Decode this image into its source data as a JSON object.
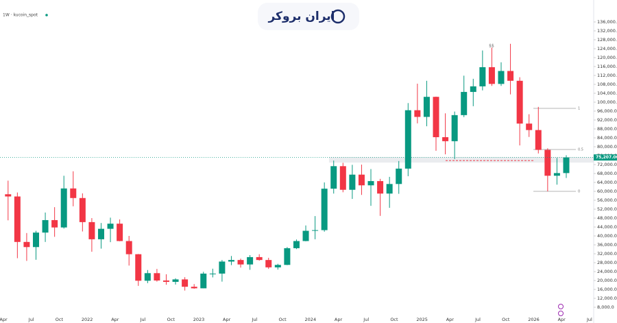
{
  "chart_data": {
    "type": "candlestick",
    "header": "1W · kucoin_spot",
    "watermark": "ایران بروکر",
    "up_color": "#089981",
    "down_color": "#f23645",
    "x": [
      "2021-04",
      "2021-05",
      "2021-06",
      "2021-07",
      "2021-08",
      "2021-09",
      "2021-10",
      "2021-11",
      "2021-12",
      "2022-01",
      "2022-02",
      "2022-03",
      "2022-04",
      "2022-05",
      "2022-06",
      "2022-07",
      "2022-08",
      "2022-09",
      "2022-10",
      "2022-11",
      "2022-12",
      "2023-01",
      "2023-02",
      "2023-03",
      "2023-04",
      "2023-05",
      "2023-06",
      "2023-07",
      "2023-08",
      "2023-09",
      "2023-10",
      "2023-11",
      "2023-12",
      "2024-01",
      "2024-02",
      "2024-03",
      "2024-04",
      "2024-05",
      "2024-06",
      "2024-07",
      "2024-08",
      "2024-09",
      "2024-10",
      "2024-11",
      "2024-12",
      "2025-01",
      "2025-02",
      "2025-03",
      "2025-04",
      "2025-05",
      "2025-06",
      "2025-07",
      "2025-08",
      "2025-09",
      "2025-10",
      "2025-11",
      "2025-12",
      "2026-01",
      "2026-02",
      "2026-03",
      "2026-04"
    ],
    "ohlc": [
      [
        58700,
        64800,
        47000,
        57700
      ],
      [
        57700,
        59500,
        30000,
        37300
      ],
      [
        37300,
        41300,
        28800,
        35000
      ],
      [
        35000,
        42300,
        29300,
        41500
      ],
      [
        41500,
        50500,
        37300,
        47100
      ],
      [
        47100,
        52900,
        39600,
        43800
      ],
      [
        43800,
        67000,
        43300,
        61300
      ],
      [
        61300,
        69000,
        53300,
        57000
      ],
      [
        57000,
        59100,
        42000,
        46200
      ],
      [
        46200,
        48000,
        32900,
        38500
      ],
      [
        38500,
        45800,
        34300,
        43200
      ],
      [
        43200,
        48200,
        37200,
        45500
      ],
      [
        45500,
        47400,
        37600,
        37700
      ],
      [
        37700,
        40000,
        26700,
        31800
      ],
      [
        31800,
        31900,
        17600,
        19900
      ],
      [
        19900,
        24700,
        18800,
        23300
      ],
      [
        23300,
        25200,
        19500,
        20000
      ],
      [
        20000,
        22800,
        18100,
        19400
      ],
      [
        19400,
        21000,
        18200,
        20500
      ],
      [
        20500,
        21500,
        15500,
        17200
      ],
      [
        17200,
        18400,
        16300,
        16500
      ],
      [
        16500,
        23900,
        16500,
        23100
      ],
      [
        23100,
        25300,
        21400,
        23100
      ],
      [
        23100,
        29200,
        19500,
        28500
      ],
      [
        28500,
        31000,
        26900,
        29200
      ],
      [
        29200,
        29800,
        25800,
        27200
      ],
      [
        27200,
        31400,
        24800,
        30500
      ],
      [
        30500,
        31800,
        28900,
        29200
      ],
      [
        29200,
        30200,
        25200,
        25900
      ],
      [
        25900,
        27500,
        24900,
        27000
      ],
      [
        27000,
        35000,
        26900,
        34500
      ],
      [
        34500,
        38400,
        34100,
        37700
      ],
      [
        37700,
        44700,
        37600,
        42300
      ],
      [
        42300,
        48900,
        38500,
        42600
      ],
      [
        42600,
        64000,
        41900,
        61200
      ],
      [
        61200,
        73800,
        59000,
        71300
      ],
      [
        71300,
        72800,
        59600,
        60700
      ],
      [
        60700,
        71900,
        56600,
        67500
      ],
      [
        67500,
        72000,
        58400,
        62700
      ],
      [
        62700,
        70000,
        53500,
        64600
      ],
      [
        64600,
        65600,
        49000,
        59000
      ],
      [
        59000,
        66500,
        52600,
        63300
      ],
      [
        63300,
        73600,
        58900,
        70200
      ],
      [
        70200,
        99600,
        66800,
        96400
      ],
      [
        96400,
        108300,
        90500,
        93400
      ],
      [
        93400,
        109600,
        89200,
        102400
      ],
      [
        102400,
        102500,
        78200,
        84300
      ],
      [
        84300,
        95000,
        76600,
        82500
      ],
      [
        82500,
        95800,
        74500,
        94200
      ],
      [
        94200,
        111900,
        93300,
        104600
      ],
      [
        104600,
        110500,
        98200,
        107100
      ],
      [
        107100,
        123200,
        105300,
        115700
      ],
      [
        115700,
        124500,
        107300,
        108200
      ],
      [
        108200,
        117900,
        107300,
        114000
      ],
      [
        114000,
        126200,
        103500,
        109600
      ],
      [
        109600,
        111200,
        80600,
        90400
      ],
      [
        90400,
        94600,
        84400,
        87500
      ],
      [
        87500,
        97900,
        77000,
        78600
      ],
      [
        78600,
        79300,
        60000,
        67000
      ],
      [
        67000,
        75000,
        63000,
        68200
      ],
      [
        68200,
        76200,
        66000,
        75200
      ]
    ],
    "ylim": [
      937,
      145846
    ],
    "yticks": [
      {
        "value": 8000,
        "label": "8,000.0"
      },
      {
        "value": 12000,
        "label": "12,000.0"
      },
      {
        "value": 16000,
        "label": "16,000.0"
      },
      {
        "value": 20000,
        "label": "20,000.0"
      },
      {
        "value": 24000,
        "label": "24,000.0"
      },
      {
        "value": 28000,
        "label": "28,000.0"
      },
      {
        "value": 32000,
        "label": "32,000.0"
      },
      {
        "value": 36000,
        "label": "36,000.0"
      },
      {
        "value": 40000,
        "label": "40,000.0"
      },
      {
        "value": 44000,
        "label": "44,000.0"
      },
      {
        "value": 48000,
        "label": "48,000.0"
      },
      {
        "value": 52000,
        "label": "52,000.0"
      },
      {
        "value": 56000,
        "label": "56,000.0"
      },
      {
        "value": 60000,
        "label": "60,000.0"
      },
      {
        "value": 64000,
        "label": "64,000.0"
      },
      {
        "value": 68000,
        "label": "68,000.0"
      },
      {
        "value": 72000,
        "label": "72,000.0"
      },
      {
        "value": 76000,
        "label": "76,000.0"
      },
      {
        "value": 80000,
        "label": "80,000.0"
      },
      {
        "value": 84000,
        "label": "84,000.0"
      },
      {
        "value": 88000,
        "label": "88,000.0"
      },
      {
        "value": 92000,
        "label": "92,000.0"
      },
      {
        "value": 96000,
        "label": "96,000.0"
      },
      {
        "value": 100000,
        "label": "100,000.0"
      },
      {
        "value": 104000,
        "label": "104,000.0"
      },
      {
        "value": 108000,
        "label": "108,000.0"
      },
      {
        "value": 112000,
        "label": "112,000.0"
      },
      {
        "value": 116000,
        "label": "116,000.0"
      },
      {
        "value": 120000,
        "label": "120,000.0"
      },
      {
        "value": 124000,
        "label": "124,000.0"
      },
      {
        "value": 128000,
        "label": "128,000.0"
      },
      {
        "value": 132000,
        "label": "132,000.0"
      },
      {
        "value": 136000,
        "label": "136,000.0"
      }
    ],
    "xticks": [
      {
        "value": "2021-04",
        "label": "Apr"
      },
      {
        "value": "2021-07",
        "label": "Jul"
      },
      {
        "value": "2021-10",
        "label": "Oct"
      },
      {
        "value": "2022-01",
        "label": "2022"
      },
      {
        "value": "2022-04",
        "label": "Apr"
      },
      {
        "value": "2022-07",
        "label": "Jul"
      },
      {
        "value": "2022-10",
        "label": "Oct"
      },
      {
        "value": "2023-01",
        "label": "2023"
      },
      {
        "value": "2023-04",
        "label": "Apr"
      },
      {
        "value": "2023-07",
        "label": "Jul"
      },
      {
        "value": "2023-10",
        "label": "Oct"
      },
      {
        "value": "2024-01",
        "label": "2024"
      },
      {
        "value": "2024-04",
        "label": "Apr"
      },
      {
        "value": "2024-07",
        "label": "Jul"
      },
      {
        "value": "2024-10",
        "label": "Oct"
      },
      {
        "value": "2025-01",
        "label": "2025"
      },
      {
        "value": "2025-04",
        "label": "Apr"
      },
      {
        "value": "2025-07",
        "label": "Jul"
      },
      {
        "value": "2025-10",
        "label": "Oct"
      },
      {
        "value": "2026-01",
        "label": "2026"
      },
      {
        "value": "2026-04",
        "label": "Apr"
      },
      {
        "value": "2026-07",
        "label": "Jul"
      }
    ],
    "price_line": {
      "value": 75207,
      "label": "75,207.00"
    },
    "zone": [
      72900,
      75400
    ],
    "fib_levels": [
      {
        "label": "1",
        "value": 97230
      },
      {
        "label": "0.5",
        "value": 78770
      },
      {
        "label": "0",
        "value": 60000
      }
    ],
    "annotation": "$$"
  }
}
